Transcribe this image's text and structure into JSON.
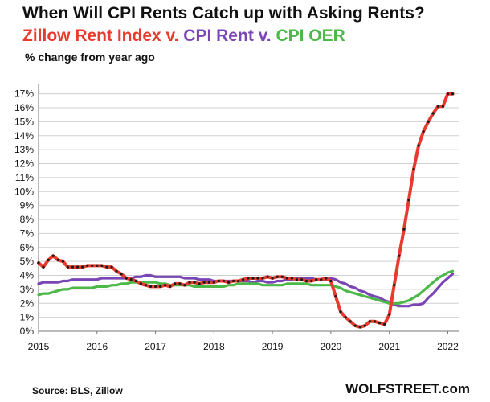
{
  "title": "When Will CPI Rents Catch up with Asking Rents?",
  "subtitle": {
    "part1": "Zillow Rent Index v.",
    "part2": " CPI Rent v.",
    "part3": " CPI OER"
  },
  "source": "Source: BLS, Zillow",
  "credit": "WOLFSTREET.com",
  "chart_data": {
    "type": "line",
    "ylabel": "% change from year ago",
    "xlabel": "",
    "ylim": [
      0,
      17.5
    ],
    "xlim": [
      2015,
      2022.2
    ],
    "x_ticks": [
      "2015",
      "2016",
      "2017",
      "2018",
      "2019",
      "2020",
      "2021",
      "2022"
    ],
    "y_ticks": [
      "0%",
      "1%",
      "2%",
      "3%",
      "4%",
      "5%",
      "6%",
      "7%",
      "8%",
      "9%",
      "10%",
      "11%",
      "12%",
      "13%",
      "14%",
      "15%",
      "16%",
      "17%"
    ],
    "grid": true,
    "colors": {
      "zillow": "#e83a2e",
      "zillow_marker": "#1a1a1a",
      "cpi_rent": "#7a45b5",
      "cpi_oer": "#4cb847",
      "grid": "#d0d0d0"
    },
    "series": [
      {
        "name": "Zillow Rent Index",
        "color": "#e83a2e",
        "x": [
          2015.0,
          2015.083,
          2015.167,
          2015.25,
          2015.333,
          2015.417,
          2015.5,
          2015.583,
          2015.667,
          2015.75,
          2015.833,
          2015.917,
          2016.0,
          2016.083,
          2016.167,
          2016.25,
          2016.333,
          2016.417,
          2016.5,
          2016.583,
          2016.667,
          2016.75,
          2016.833,
          2016.917,
          2017.0,
          2017.083,
          2017.167,
          2017.25,
          2017.333,
          2017.417,
          2017.5,
          2017.583,
          2017.667,
          2017.75,
          2017.833,
          2017.917,
          2018.0,
          2018.083,
          2018.167,
          2018.25,
          2018.333,
          2018.417,
          2018.5,
          2018.583,
          2018.667,
          2018.75,
          2018.833,
          2018.917,
          2019.0,
          2019.083,
          2019.167,
          2019.25,
          2019.333,
          2019.417,
          2019.5,
          2019.583,
          2019.667,
          2019.75,
          2019.833,
          2019.917,
          2020.0,
          2020.083,
          2020.167,
          2020.25,
          2020.333,
          2020.417,
          2020.5,
          2020.583,
          2020.667,
          2020.75,
          2020.833,
          2020.917,
          2021.0,
          2021.083,
          2021.167,
          2021.25,
          2021.333,
          2021.417,
          2021.5,
          2021.583,
          2021.667,
          2021.75,
          2021.833,
          2021.917,
          2022.0,
          2022.083
        ],
        "values": [
          4.9,
          4.6,
          5.1,
          5.4,
          5.1,
          5.0,
          4.6,
          4.6,
          4.6,
          4.6,
          4.7,
          4.7,
          4.7,
          4.7,
          4.6,
          4.6,
          4.3,
          4.1,
          3.8,
          3.7,
          3.6,
          3.4,
          3.3,
          3.2,
          3.2,
          3.2,
          3.3,
          3.2,
          3.4,
          3.4,
          3.3,
          3.5,
          3.5,
          3.4,
          3.5,
          3.5,
          3.5,
          3.6,
          3.6,
          3.5,
          3.6,
          3.6,
          3.7,
          3.8,
          3.8,
          3.8,
          3.8,
          3.9,
          3.8,
          3.9,
          3.9,
          3.8,
          3.8,
          3.7,
          3.7,
          3.6,
          3.6,
          3.7,
          3.7,
          3.8,
          3.6,
          2.5,
          1.4,
          1.0,
          0.7,
          0.4,
          0.3,
          0.4,
          0.7,
          0.7,
          0.6,
          0.5,
          1.2,
          3.3,
          5.4,
          7.3,
          9.4,
          11.6,
          13.3,
          14.3,
          15.0,
          15.6,
          16.1,
          16.1,
          17.0,
          17.0
        ]
      },
      {
        "name": "CPI Rent",
        "color": "#7a45b5",
        "x": [
          2015.0,
          2015.083,
          2015.167,
          2015.25,
          2015.333,
          2015.417,
          2015.5,
          2015.583,
          2015.667,
          2015.75,
          2015.833,
          2015.917,
          2016.0,
          2016.083,
          2016.167,
          2016.25,
          2016.333,
          2016.417,
          2016.5,
          2016.583,
          2016.667,
          2016.75,
          2016.833,
          2016.917,
          2017.0,
          2017.083,
          2017.167,
          2017.25,
          2017.333,
          2017.417,
          2017.5,
          2017.583,
          2017.667,
          2017.75,
          2017.833,
          2017.917,
          2018.0,
          2018.083,
          2018.167,
          2018.25,
          2018.333,
          2018.417,
          2018.5,
          2018.583,
          2018.667,
          2018.75,
          2018.833,
          2018.917,
          2019.0,
          2019.083,
          2019.167,
          2019.25,
          2019.333,
          2019.417,
          2019.5,
          2019.583,
          2019.667,
          2019.75,
          2019.833,
          2019.917,
          2020.0,
          2020.083,
          2020.167,
          2020.25,
          2020.333,
          2020.417,
          2020.5,
          2020.583,
          2020.667,
          2020.75,
          2020.833,
          2020.917,
          2021.0,
          2021.083,
          2021.167,
          2021.25,
          2021.333,
          2021.417,
          2021.5,
          2021.583,
          2021.667,
          2021.75,
          2021.833,
          2021.917,
          2022.0,
          2022.083
        ],
        "values": [
          3.4,
          3.5,
          3.5,
          3.5,
          3.5,
          3.6,
          3.6,
          3.7,
          3.7,
          3.7,
          3.7,
          3.7,
          3.7,
          3.8,
          3.8,
          3.8,
          3.8,
          3.8,
          3.8,
          3.8,
          3.9,
          3.9,
          4.0,
          4.0,
          3.9,
          3.9,
          3.9,
          3.9,
          3.9,
          3.9,
          3.8,
          3.8,
          3.8,
          3.7,
          3.7,
          3.7,
          3.6,
          3.6,
          3.6,
          3.6,
          3.6,
          3.6,
          3.6,
          3.6,
          3.5,
          3.6,
          3.6,
          3.5,
          3.5,
          3.6,
          3.6,
          3.7,
          3.7,
          3.8,
          3.8,
          3.8,
          3.8,
          3.7,
          3.7,
          3.7,
          3.8,
          3.7,
          3.5,
          3.4,
          3.2,
          3.1,
          2.9,
          2.8,
          2.6,
          2.5,
          2.4,
          2.2,
          2.1,
          1.9,
          1.8,
          1.8,
          1.8,
          1.9,
          1.9,
          2.0,
          2.4,
          2.7,
          3.1,
          3.5,
          3.8,
          4.1
        ]
      },
      {
        "name": "CPI OER",
        "color": "#4cb847",
        "x": [
          2015.0,
          2015.083,
          2015.167,
          2015.25,
          2015.333,
          2015.417,
          2015.5,
          2015.583,
          2015.667,
          2015.75,
          2015.833,
          2015.917,
          2016.0,
          2016.083,
          2016.167,
          2016.25,
          2016.333,
          2016.417,
          2016.5,
          2016.583,
          2016.667,
          2016.75,
          2016.833,
          2016.917,
          2017.0,
          2017.083,
          2017.167,
          2017.25,
          2017.333,
          2017.417,
          2017.5,
          2017.583,
          2017.667,
          2017.75,
          2017.833,
          2017.917,
          2018.0,
          2018.083,
          2018.167,
          2018.25,
          2018.333,
          2018.417,
          2018.5,
          2018.583,
          2018.667,
          2018.75,
          2018.833,
          2018.917,
          2019.0,
          2019.083,
          2019.167,
          2019.25,
          2019.333,
          2019.417,
          2019.5,
          2019.583,
          2019.667,
          2019.75,
          2019.833,
          2019.917,
          2020.0,
          2020.083,
          2020.167,
          2020.25,
          2020.333,
          2020.417,
          2020.5,
          2020.583,
          2020.667,
          2020.75,
          2020.833,
          2020.917,
          2021.0,
          2021.083,
          2021.167,
          2021.25,
          2021.333,
          2021.417,
          2021.5,
          2021.583,
          2021.667,
          2021.75,
          2021.833,
          2021.917,
          2022.0,
          2022.083
        ],
        "values": [
          2.6,
          2.7,
          2.7,
          2.8,
          2.9,
          3.0,
          3.0,
          3.1,
          3.1,
          3.1,
          3.1,
          3.1,
          3.2,
          3.2,
          3.2,
          3.3,
          3.3,
          3.4,
          3.4,
          3.5,
          3.5,
          3.5,
          3.5,
          3.5,
          3.5,
          3.4,
          3.4,
          3.3,
          3.3,
          3.3,
          3.3,
          3.3,
          3.2,
          3.2,
          3.2,
          3.2,
          3.2,
          3.2,
          3.2,
          3.3,
          3.3,
          3.4,
          3.4,
          3.4,
          3.4,
          3.4,
          3.3,
          3.3,
          3.3,
          3.3,
          3.3,
          3.4,
          3.4,
          3.4,
          3.4,
          3.4,
          3.3,
          3.3,
          3.3,
          3.3,
          3.3,
          3.2,
          3.1,
          2.9,
          2.8,
          2.7,
          2.6,
          2.5,
          2.4,
          2.3,
          2.2,
          2.1,
          2.0,
          2.0,
          2.0,
          2.1,
          2.2,
          2.4,
          2.6,
          2.9,
          3.2,
          3.5,
          3.8,
          4.0,
          4.2,
          4.3
        ]
      }
    ]
  }
}
